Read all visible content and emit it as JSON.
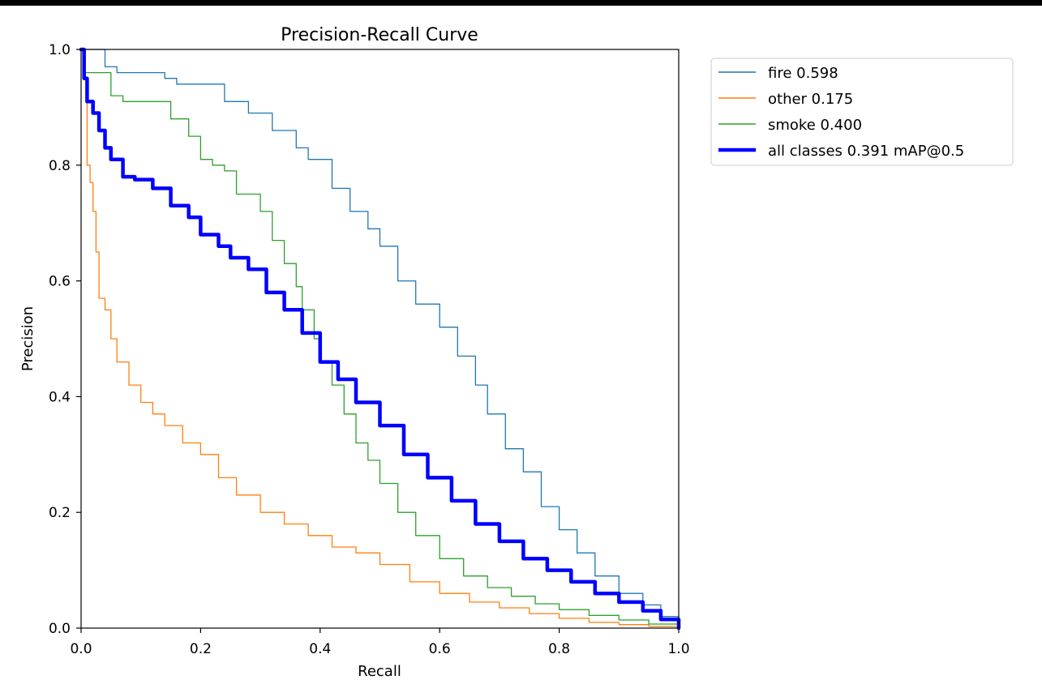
{
  "chart_data": {
    "type": "line",
    "title": "Precision-Recall Curve",
    "xlabel": "Recall",
    "ylabel": "Precision",
    "xlim": [
      0.0,
      1.0
    ],
    "ylim": [
      0.0,
      1.0
    ],
    "x_ticks": [
      "0.0",
      "0.2",
      "0.4",
      "0.6",
      "0.8",
      "1.0"
    ],
    "y_ticks": [
      "0.0",
      "0.2",
      "0.4",
      "0.6",
      "0.8",
      "1.0"
    ],
    "grid": false,
    "legend_position": "outside-right-top",
    "series": [
      {
        "name": "fire 0.598",
        "color": "#1f77b4",
        "bold": false,
        "points": [
          [
            0.0,
            1.0
          ],
          [
            0.03,
            1.0
          ],
          [
            0.04,
            0.97
          ],
          [
            0.06,
            0.96
          ],
          [
            0.12,
            0.96
          ],
          [
            0.14,
            0.95
          ],
          [
            0.16,
            0.94
          ],
          [
            0.2,
            0.94
          ],
          [
            0.24,
            0.91
          ],
          [
            0.28,
            0.89
          ],
          [
            0.32,
            0.86
          ],
          [
            0.36,
            0.83
          ],
          [
            0.38,
            0.81
          ],
          [
            0.42,
            0.76
          ],
          [
            0.45,
            0.72
          ],
          [
            0.48,
            0.69
          ],
          [
            0.5,
            0.66
          ],
          [
            0.53,
            0.6
          ],
          [
            0.56,
            0.56
          ],
          [
            0.6,
            0.52
          ],
          [
            0.63,
            0.47
          ],
          [
            0.66,
            0.42
          ],
          [
            0.68,
            0.37
          ],
          [
            0.71,
            0.31
          ],
          [
            0.74,
            0.27
          ],
          [
            0.77,
            0.21
          ],
          [
            0.8,
            0.17
          ],
          [
            0.83,
            0.13
          ],
          [
            0.86,
            0.09
          ],
          [
            0.9,
            0.06
          ],
          [
            0.94,
            0.04
          ],
          [
            0.97,
            0.02
          ],
          [
            1.0,
            0.0
          ]
        ]
      },
      {
        "name": "other 0.175",
        "color": "#ff7f0e",
        "bold": false,
        "points": [
          [
            0.0,
            1.0
          ],
          [
            0.005,
            0.95
          ],
          [
            0.01,
            0.8
          ],
          [
            0.015,
            0.77
          ],
          [
            0.02,
            0.72
          ],
          [
            0.025,
            0.65
          ],
          [
            0.03,
            0.57
          ],
          [
            0.04,
            0.55
          ],
          [
            0.05,
            0.5
          ],
          [
            0.06,
            0.46
          ],
          [
            0.08,
            0.42
          ],
          [
            0.1,
            0.39
          ],
          [
            0.12,
            0.37
          ],
          [
            0.14,
            0.35
          ],
          [
            0.17,
            0.32
          ],
          [
            0.2,
            0.3
          ],
          [
            0.23,
            0.26
          ],
          [
            0.26,
            0.23
          ],
          [
            0.3,
            0.2
          ],
          [
            0.34,
            0.18
          ],
          [
            0.38,
            0.16
          ],
          [
            0.42,
            0.14
          ],
          [
            0.46,
            0.13
          ],
          [
            0.5,
            0.11
          ],
          [
            0.55,
            0.08
          ],
          [
            0.6,
            0.06
          ],
          [
            0.65,
            0.045
          ],
          [
            0.7,
            0.035
          ],
          [
            0.75,
            0.025
          ],
          [
            0.8,
            0.017
          ],
          [
            0.85,
            0.01
          ],
          [
            0.9,
            0.006
          ],
          [
            0.95,
            0.003
          ],
          [
            1.0,
            0.0
          ]
        ]
      },
      {
        "name": "smoke 0.400",
        "color": "#2ca02c",
        "bold": false,
        "points": [
          [
            0.0,
            1.0
          ],
          [
            0.005,
            0.96
          ],
          [
            0.04,
            0.96
          ],
          [
            0.05,
            0.92
          ],
          [
            0.07,
            0.91
          ],
          [
            0.13,
            0.91
          ],
          [
            0.15,
            0.88
          ],
          [
            0.18,
            0.85
          ],
          [
            0.2,
            0.81
          ],
          [
            0.22,
            0.8
          ],
          [
            0.24,
            0.79
          ],
          [
            0.26,
            0.75
          ],
          [
            0.28,
            0.75
          ],
          [
            0.3,
            0.72
          ],
          [
            0.32,
            0.67
          ],
          [
            0.34,
            0.63
          ],
          [
            0.36,
            0.59
          ],
          [
            0.37,
            0.55
          ],
          [
            0.39,
            0.5
          ],
          [
            0.4,
            0.46
          ],
          [
            0.42,
            0.42
          ],
          [
            0.44,
            0.37
          ],
          [
            0.46,
            0.32
          ],
          [
            0.48,
            0.29
          ],
          [
            0.5,
            0.25
          ],
          [
            0.53,
            0.2
          ],
          [
            0.56,
            0.16
          ],
          [
            0.6,
            0.12
          ],
          [
            0.64,
            0.09
          ],
          [
            0.68,
            0.07
          ],
          [
            0.72,
            0.055
          ],
          [
            0.76,
            0.042
          ],
          [
            0.8,
            0.032
          ],
          [
            0.85,
            0.022
          ],
          [
            0.9,
            0.014
          ],
          [
            0.95,
            0.007
          ],
          [
            1.0,
            0.0
          ]
        ]
      },
      {
        "name": "all classes 0.391 mAP@0.5",
        "color": "#0000ff",
        "bold": true,
        "points": [
          [
            0.0,
            1.0
          ],
          [
            0.005,
            0.95
          ],
          [
            0.01,
            0.91
          ],
          [
            0.02,
            0.89
          ],
          [
            0.03,
            0.86
          ],
          [
            0.04,
            0.83
          ],
          [
            0.05,
            0.81
          ],
          [
            0.07,
            0.78
          ],
          [
            0.09,
            0.775
          ],
          [
            0.12,
            0.76
          ],
          [
            0.15,
            0.73
          ],
          [
            0.18,
            0.71
          ],
          [
            0.2,
            0.68
          ],
          [
            0.23,
            0.66
          ],
          [
            0.25,
            0.64
          ],
          [
            0.28,
            0.62
          ],
          [
            0.31,
            0.58
          ],
          [
            0.34,
            0.55
          ],
          [
            0.37,
            0.51
          ],
          [
            0.4,
            0.46
          ],
          [
            0.43,
            0.43
          ],
          [
            0.46,
            0.39
          ],
          [
            0.5,
            0.35
          ],
          [
            0.54,
            0.3
          ],
          [
            0.58,
            0.26
          ],
          [
            0.62,
            0.22
          ],
          [
            0.66,
            0.18
          ],
          [
            0.7,
            0.15
          ],
          [
            0.74,
            0.12
          ],
          [
            0.78,
            0.1
          ],
          [
            0.82,
            0.08
          ],
          [
            0.86,
            0.06
          ],
          [
            0.9,
            0.045
          ],
          [
            0.94,
            0.03
          ],
          [
            0.97,
            0.015
          ],
          [
            1.0,
            0.0
          ]
        ]
      }
    ]
  }
}
